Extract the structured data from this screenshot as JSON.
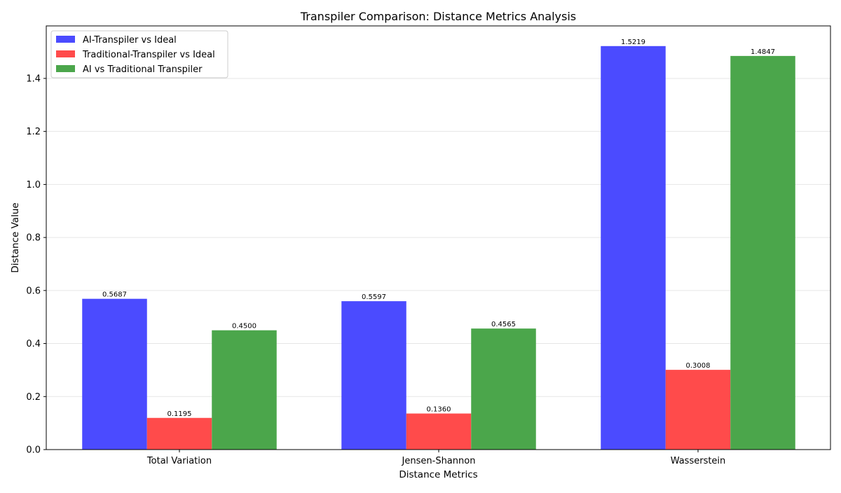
{
  "chart_data": {
    "type": "bar",
    "title": "Transpiler Comparison: Distance Metrics Analysis",
    "xlabel": "Distance Metrics",
    "ylabel": "Distance Value",
    "categories": [
      "Total Variation",
      "Jensen-Shannon",
      "Wasserstein"
    ],
    "series": [
      {
        "name": "AI-Transpiler vs Ideal",
        "values": [
          0.5687,
          0.5597,
          1.5219
        ],
        "labels": [
          "0.5687",
          "0.5597",
          "1.5219"
        ],
        "color": "#4b4bff"
      },
      {
        "name": "Traditional-Transpiler vs Ideal",
        "values": [
          0.1195,
          0.136,
          0.3008
        ],
        "labels": [
          "0.1195",
          "0.1360",
          "0.3008"
        ],
        "color": "#ff4b4b"
      },
      {
        "name": "AI vs Traditional Transpiler",
        "values": [
          0.45,
          0.4565,
          1.4847
        ],
        "labels": [
          "0.4500",
          "0.4565",
          "1.4847"
        ],
        "color": "#4ba64b"
      }
    ],
    "ylim": [
      0,
      1.598
    ],
    "yticks": [
      0.0,
      0.2,
      0.4,
      0.6,
      0.8,
      1.0,
      1.2,
      1.4
    ],
    "ytick_labels": [
      "0.0",
      "0.2",
      "0.4",
      "0.6",
      "0.8",
      "1.0",
      "1.2",
      "1.4"
    ],
    "grid": true,
    "legend_position": "top-left"
  }
}
